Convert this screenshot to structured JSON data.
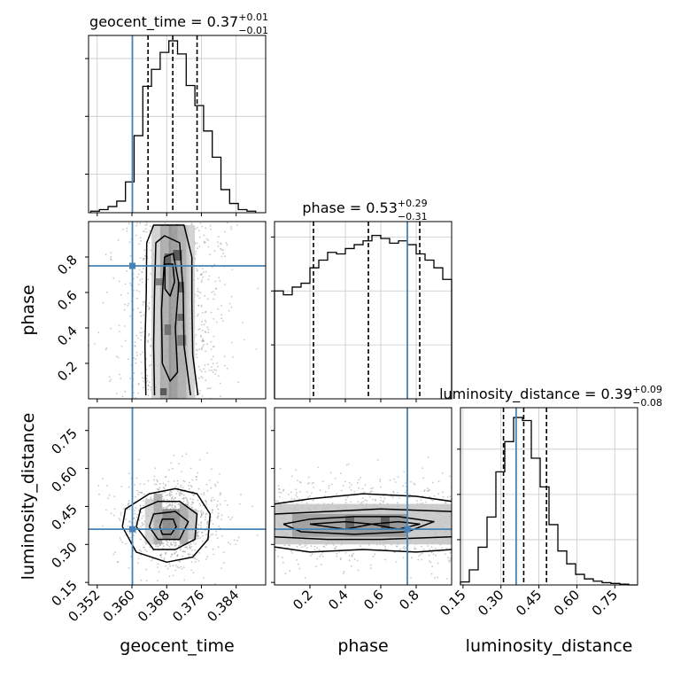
{
  "chart_data": {
    "type": "corner",
    "parameters": [
      "geocent_time",
      "phase",
      "luminosity_distance"
    ],
    "truth": {
      "geocent_time": 0.3601,
      "phase": 0.75,
      "luminosity_distance": 0.36
    },
    "colors": {
      "truth": "#4682b4",
      "hist": "#000000",
      "grid": "#c8c8c8"
    },
    "diagonal": [
      {
        "param": "geocent_time",
        "title_main": "geocent_time = 0.37",
        "title_sup": "+0.01",
        "title_sub": "−0.01",
        "xlim": [
          0.35,
          0.3908
        ],
        "quantiles": [
          0.3637,
          0.3694,
          0.375
        ],
        "bin_edges": [
          0.3505,
          0.3525,
          0.3545,
          0.3565,
          0.3585,
          0.3605,
          0.3625,
          0.3645,
          0.3665,
          0.3685,
          0.3705,
          0.3725,
          0.3745,
          0.3765,
          0.3785,
          0.3805,
          0.3825,
          0.3845,
          0.3865,
          0.3885
        ],
        "counts": [
          2,
          4,
          8,
          15,
          40,
          100,
          164,
          186,
          208,
          223,
          206,
          165,
          139,
          106,
          72,
          30,
          12,
          4,
          2
        ],
        "count_max": 230,
        "ytick_values": [
          50,
          125,
          200
        ],
        "grid": true
      },
      {
        "param": "phase",
        "title_main": "phase = 0.53",
        "title_sup": "+0.29",
        "title_sub": "−0.31",
        "xlim": [
          0.0,
          1.0
        ],
        "quantiles": [
          0.22,
          0.53,
          0.82
        ],
        "bin_edges": [
          0.0,
          0.05,
          0.1,
          0.15,
          0.2,
          0.25,
          0.3,
          0.35,
          0.4,
          0.45,
          0.5,
          0.55,
          0.6,
          0.65,
          0.7,
          0.75,
          0.8,
          0.85,
          0.9,
          0.95,
          1.0
        ],
        "counts": [
          140,
          135,
          145,
          150,
          170,
          180,
          190,
          188,
          195,
          200,
          205,
          212,
          208,
          202,
          205,
          200,
          188,
          180,
          170,
          155
        ],
        "count_max": 230,
        "ytick_values": [
          70,
          140,
          210
        ],
        "grid": true
      },
      {
        "param": "luminosity_distance",
        "title_main": "luminosity_distance = 0.39",
        "title_sup": "+0.09",
        "title_sub": "−0.08",
        "xlim": [
          0.14,
          0.84
        ],
        "quantiles": [
          0.31,
          0.39,
          0.48
        ],
        "bin_edges": [
          0.14,
          0.175,
          0.21,
          0.245,
          0.28,
          0.315,
          0.35,
          0.385,
          0.42,
          0.455,
          0.49,
          0.525,
          0.56,
          0.595,
          0.63,
          0.665,
          0.7,
          0.735,
          0.77,
          0.805,
          0.84
        ],
        "counts": [
          4,
          20,
          50,
          90,
          150,
          190,
          222,
          218,
          168,
          130,
          80,
          45,
          28,
          14,
          8,
          5,
          3,
          2,
          1,
          0
        ],
        "count_max": 235,
        "ytick_values": [
          60,
          120,
          180
        ],
        "grid": true
      }
    ],
    "pairs": [
      {
        "xparam": "geocent_time",
        "yparam": "phase",
        "xlim": [
          0.35,
          0.3908
        ],
        "ylim": [
          0.0,
          1.0
        ],
        "cells": [
          [
            0.3645,
            0.0,
            0.0025,
            0.98,
            0.25
          ],
          [
            0.3665,
            0.0,
            0.0025,
            0.98,
            0.45
          ],
          [
            0.3685,
            0.0,
            0.002,
            0.98,
            0.55
          ],
          [
            0.3705,
            0.0,
            0.0025,
            0.98,
            0.45
          ],
          [
            0.3725,
            0.0,
            0.002,
            0.98,
            0.25
          ],
          [
            0.3675,
            0.76,
            0.0015,
            0.06,
            0.85
          ],
          [
            0.3695,
            0.78,
            0.002,
            0.06,
            0.9
          ],
          [
            0.3655,
            0.64,
            0.0015,
            0.04,
            0.7
          ],
          [
            0.3705,
            0.6,
            0.0015,
            0.06,
            0.85
          ],
          [
            0.3675,
            0.36,
            0.0015,
            0.06,
            0.75
          ],
          [
            0.3705,
            0.3,
            0.002,
            0.06,
            0.7
          ],
          [
            0.3665,
            0.02,
            0.0015,
            0.04,
            0.9
          ],
          [
            0.3705,
            0.44,
            0.0015,
            0.04,
            0.8
          ]
        ],
        "contours": [
          [
            [
              0.3632,
              0.02
            ],
            [
              0.363,
              0.3
            ],
            [
              0.3633,
              0.6
            ],
            [
              0.3634,
              0.88
            ],
            [
              0.365,
              0.98
            ],
            [
              0.372,
              0.98
            ],
            [
              0.3738,
              0.8
            ],
            [
              0.3738,
              0.55
            ],
            [
              0.374,
              0.25
            ],
            [
              0.3752,
              0.02
            ]
          ],
          [
            [
              0.3652,
              0.02
            ],
            [
              0.365,
              0.3
            ],
            [
              0.3652,
              0.6
            ],
            [
              0.3655,
              0.88
            ],
            [
              0.3675,
              0.92
            ],
            [
              0.371,
              0.88
            ],
            [
              0.3718,
              0.6
            ],
            [
              0.372,
              0.3
            ],
            [
              0.3735,
              0.02
            ]
          ],
          [
            [
              0.367,
              0.2
            ],
            [
              0.3668,
              0.5
            ],
            [
              0.3675,
              0.8
            ],
            [
              0.3695,
              0.82
            ],
            [
              0.3708,
              0.65
            ],
            [
              0.37,
              0.4
            ],
            [
              0.3705,
              0.15
            ],
            [
              0.3688,
              0.1
            ],
            [
              0.367,
              0.2
            ]
          ],
          [
            [
              0.3676,
              0.62
            ],
            [
              0.3676,
              0.76
            ],
            [
              0.3694,
              0.76
            ],
            [
              0.3698,
              0.66
            ],
            [
              0.3688,
              0.58
            ],
            [
              0.3676,
              0.62
            ]
          ]
        ],
        "grid": false
      },
      {
        "xparam": "geocent_time",
        "yparam": "luminosity_distance",
        "xlim": [
          0.35,
          0.3908
        ],
        "ylim": [
          0.14,
          0.84
        ],
        "cells": [
          [
            0.363,
            0.3,
            0.002,
            0.18,
            0.25
          ],
          [
            0.365,
            0.3,
            0.002,
            0.2,
            0.45
          ],
          [
            0.367,
            0.32,
            0.002,
            0.12,
            0.65
          ],
          [
            0.369,
            0.32,
            0.002,
            0.12,
            0.6
          ],
          [
            0.371,
            0.3,
            0.002,
            0.16,
            0.45
          ],
          [
            0.373,
            0.32,
            0.002,
            0.12,
            0.3
          ]
        ],
        "contours": [
          [
            [
              0.3578,
              0.37
            ],
            [
              0.3585,
              0.44
            ],
            [
              0.364,
              0.5
            ],
            [
              0.37,
              0.52
            ],
            [
              0.375,
              0.5
            ],
            [
              0.378,
              0.42
            ],
            [
              0.3775,
              0.32
            ],
            [
              0.374,
              0.25
            ],
            [
              0.368,
              0.23
            ],
            [
              0.361,
              0.27
            ],
            [
              0.3578,
              0.37
            ]
          ],
          [
            [
              0.361,
              0.37
            ],
            [
              0.362,
              0.44
            ],
            [
              0.366,
              0.47
            ],
            [
              0.371,
              0.47
            ],
            [
              0.375,
              0.42
            ],
            [
              0.3745,
              0.32
            ],
            [
              0.37,
              0.28
            ],
            [
              0.365,
              0.28
            ],
            [
              0.361,
              0.37
            ]
          ],
          [
            [
              0.364,
              0.37
            ],
            [
              0.365,
              0.42
            ],
            [
              0.37,
              0.43
            ],
            [
              0.373,
              0.39
            ],
            [
              0.371,
              0.32
            ],
            [
              0.366,
              0.32
            ],
            [
              0.364,
              0.37
            ]
          ],
          [
            [
              0.3664,
              0.37
            ],
            [
              0.367,
              0.4
            ],
            [
              0.3695,
              0.4
            ],
            [
              0.3702,
              0.37
            ],
            [
              0.369,
              0.34
            ],
            [
              0.367,
              0.34
            ],
            [
              0.3664,
              0.37
            ]
          ]
        ],
        "grid": false
      },
      {
        "xparam": "phase",
        "yparam": "luminosity_distance",
        "xlim": [
          0.0,
          1.0
        ],
        "ylim": [
          0.14,
          0.84
        ],
        "cells": [
          [
            0.0,
            0.3,
            1.0,
            0.16,
            0.3
          ],
          [
            0.1,
            0.33,
            0.3,
            0.09,
            0.5
          ],
          [
            0.4,
            0.33,
            0.35,
            0.09,
            0.55
          ],
          [
            0.4,
            0.36,
            0.05,
            0.05,
            0.8
          ],
          [
            0.6,
            0.36,
            0.05,
            0.05,
            0.85
          ]
        ],
        "contours": [
          [
            [
              0.0,
              0.46
            ],
            [
              0.2,
              0.48
            ],
            [
              0.5,
              0.5
            ],
            [
              0.8,
              0.49
            ],
            [
              1.0,
              0.47
            ]
          ],
          [
            [
              0.0,
              0.29
            ],
            [
              0.2,
              0.27
            ],
            [
              0.5,
              0.28
            ],
            [
              0.8,
              0.27
            ],
            [
              1.0,
              0.28
            ]
          ],
          [
            [
              0.0,
              0.42
            ],
            [
              0.3,
              0.43
            ],
            [
              0.6,
              0.44
            ],
            [
              1.0,
              0.43
            ]
          ],
          [
            [
              0.0,
              0.33
            ],
            [
              0.3,
              0.32
            ],
            [
              0.6,
              0.32
            ],
            [
              1.0,
              0.33
            ]
          ],
          [
            [
              0.05,
              0.38
            ],
            [
              0.2,
              0.4
            ],
            [
              0.45,
              0.41
            ],
            [
              0.7,
              0.41
            ],
            [
              0.9,
              0.39
            ],
            [
              0.75,
              0.35
            ],
            [
              0.45,
              0.34
            ],
            [
              0.15,
              0.35
            ],
            [
              0.05,
              0.38
            ]
          ],
          [
            [
              0.2,
              0.38
            ],
            [
              0.4,
              0.39
            ],
            [
              0.55,
              0.38
            ],
            [
              0.4,
              0.36
            ],
            [
              0.2,
              0.38
            ]
          ],
          [
            [
              0.55,
              0.38
            ],
            [
              0.7,
              0.39
            ],
            [
              0.82,
              0.38
            ],
            [
              0.7,
              0.36
            ],
            [
              0.55,
              0.38
            ]
          ]
        ],
        "grid": false
      }
    ],
    "tick_labels": {
      "geocent_time": [
        "0.352",
        "0.360",
        "0.368",
        "0.376",
        "0.384"
      ],
      "geocent_time_values": [
        0.352,
        0.36,
        0.368,
        0.376,
        0.384
      ],
      "phase": [
        "0.2",
        "0.4",
        "0.6",
        "0.8"
      ],
      "phase_values": [
        0.2,
        0.4,
        0.6,
        0.8
      ],
      "luminosity_distance": [
        "0.15",
        "0.30",
        "0.45",
        "0.60",
        "0.75"
      ],
      "luminosity_distance_values": [
        0.15,
        0.3,
        0.45,
        0.6,
        0.75
      ]
    },
    "axis_labels": {
      "x": [
        "geocent_time",
        "phase",
        "luminosity_distance"
      ],
      "y": [
        "phase",
        "luminosity_distance"
      ]
    }
  }
}
